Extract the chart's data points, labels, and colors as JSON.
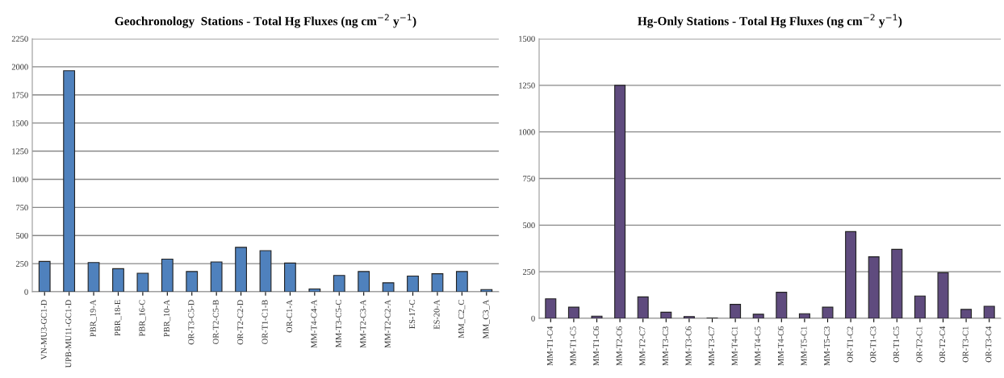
{
  "chart_data": [
    {
      "type": "bar",
      "title": "Geochronology  Stations - Total Hg Fluxes (ng cm$^{−2}$ y$^{−1}$)",
      "categories": [
        "VN-MU3-GC1-D",
        "UPB-MU11-GC1-D",
        "PBR_19-A",
        "PBR_18-E",
        "PBR_16-C",
        "PBR_10-A",
        "OR-T3-C5-D",
        "OR-T2-C5-B",
        "OR-T2-C2-D",
        "OR-T1-C1-B",
        "OR-C1-A",
        "MM-T4-C4-A",
        "MM-T3-C5-C",
        "MM-T2-C3-A",
        "MM-T2-C2-A",
        "ES-17-C",
        "ES-20-A",
        "MM_C2_C",
        "MM_C3_A"
      ],
      "values": [
        270,
        1965,
        260,
        205,
        165,
        290,
        180,
        265,
        395,
        365,
        255,
        25,
        145,
        180,
        80,
        140,
        160,
        180,
        20
      ],
      "color": "#4f81bd",
      "ylim": [
        0,
        2250
      ],
      "yticks": [
        0,
        250,
        500,
        750,
        1000,
        1250,
        1500,
        1750,
        2000,
        2250
      ],
      "grid": "y"
    },
    {
      "type": "bar",
      "title": "Hg-Only Stations - Total Hg Fluxes (ng cm$^{−2}$ y$^{−1}$)",
      "categories": [
        "MM-T1-C4",
        "MM-T1-C5",
        "MM-T1-C6",
        "MM-T2-C6",
        "MM-T2-C7",
        "MM-T3-C3",
        "MM-T3-C6",
        "MM-T3-C7",
        "MM-T4-C1",
        "MM-T4-C5",
        "MM-T4-C6",
        "MM-T5-C1",
        "MM-T5-C3",
        "OR-T1-C2",
        "OR-T1-C3",
        "OR-T1-C5",
        "OR-T2-C1",
        "OR-T2-C4",
        "OR-T3-C1",
        "OR-T3-C4"
      ],
      "values": [
        105,
        60,
        12,
        1250,
        115,
        33,
        10,
        2,
        75,
        22,
        140,
        25,
        60,
        465,
        330,
        370,
        120,
        245,
        48,
        65
      ],
      "color": "#5f4b7e",
      "ylim": [
        0,
        1500
      ],
      "yticks": [
        0,
        250,
        500,
        750,
        1000,
        1250,
        1500
      ],
      "grid": "y"
    }
  ]
}
